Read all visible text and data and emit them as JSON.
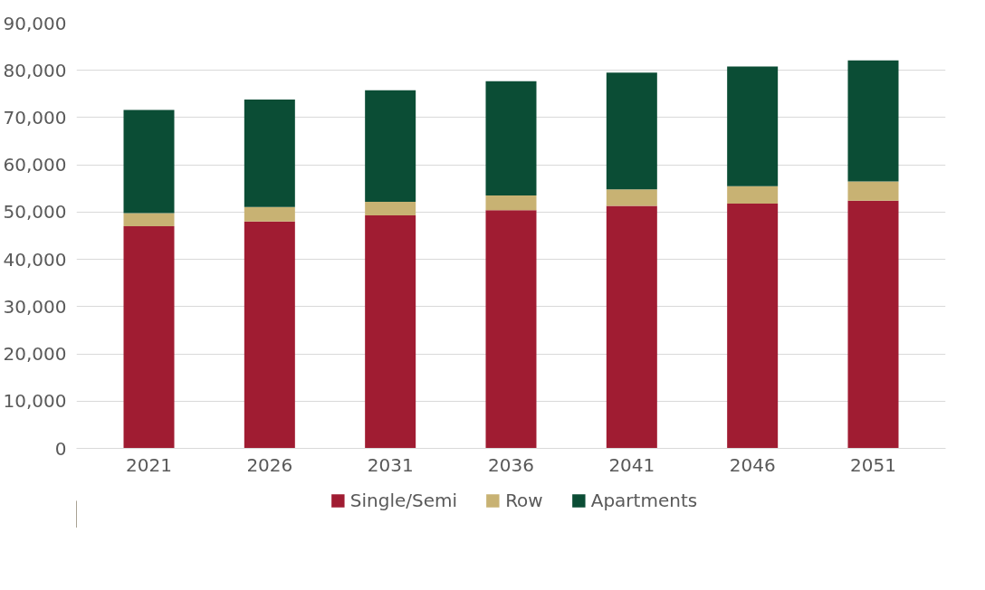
{
  "chart_data": {
    "type": "bar",
    "stacked": true,
    "categories": [
      "2021",
      "2026",
      "2031",
      "2036",
      "2041",
      "2046",
      "2051"
    ],
    "series": [
      {
        "name": "Single/Semi",
        "color": "#a01c32",
        "values": [
          47000,
          48000,
          49300,
          50400,
          51300,
          51800,
          52400
        ]
      },
      {
        "name": "Row",
        "color": "#c8b273",
        "values": [
          2800,
          3100,
          2900,
          3100,
          3500,
          3700,
          4100
        ]
      },
      {
        "name": "Apartments",
        "color": "#0b4d35",
        "values": [
          21800,
          22700,
          23600,
          24200,
          24700,
          25300,
          25600
        ]
      }
    ],
    "ylim": [
      0,
      90000
    ],
    "yticks": [
      {
        "value": 0,
        "label": "0"
      },
      {
        "value": 10000,
        "label": "10,000"
      },
      {
        "value": 20000,
        "label": "20,000"
      },
      {
        "value": 30000,
        "label": "30,000"
      },
      {
        "value": 40000,
        "label": "40,000"
      },
      {
        "value": 50000,
        "label": "50,000"
      },
      {
        "value": 60000,
        "label": "60,000"
      },
      {
        "value": 70000,
        "label": "70,000"
      },
      {
        "value": 80000,
        "label": "80,000"
      },
      {
        "value": 90000,
        "label": "90,000"
      }
    ],
    "grid": "y",
    "legend": "bottom"
  }
}
